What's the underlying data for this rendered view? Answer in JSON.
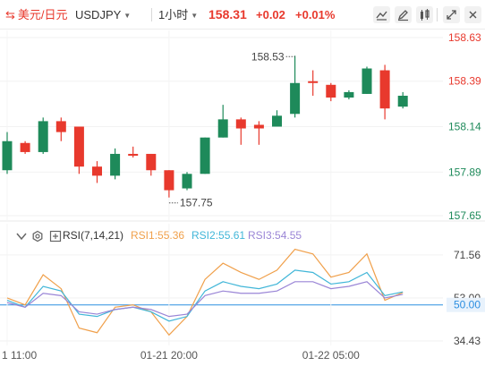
{
  "header": {
    "symbol": "美元/日元",
    "pair": "USDJPY",
    "interval": "1小时",
    "price": "158.31",
    "change": "+0.02",
    "change_pct": "+0.01%",
    "icons": [
      "compare-icon",
      "edit-icon",
      "settings-icon",
      "fullscreen-icon"
    ]
  },
  "chart_data": [
    {
      "type": "candlestick",
      "title": "",
      "price_ticks": [
        "158.63",
        "158.39",
        "158.14",
        "157.89",
        "157.65"
      ],
      "time_ticks": [
        "1 11:00",
        "01-21 20:00",
        "01-22 05:00"
      ],
      "high_label": "158.53",
      "low_label": "157.75",
      "colors": {
        "up": "#1e8a5a",
        "down": "#e8392d"
      },
      "candles": [
        {
          "o": 157.9,
          "c": 158.06,
          "h": 158.11,
          "l": 157.88
        },
        {
          "o": 158.05,
          "c": 158.0,
          "h": 158.06,
          "l": 157.99
        },
        {
          "o": 158.0,
          "c": 158.17,
          "h": 158.19,
          "l": 157.99
        },
        {
          "o": 158.17,
          "c": 158.11,
          "h": 158.19,
          "l": 158.06
        },
        {
          "o": 158.14,
          "c": 157.92,
          "h": 158.14,
          "l": 157.88
        },
        {
          "o": 157.92,
          "c": 157.87,
          "h": 157.95,
          "l": 157.83
        },
        {
          "o": 157.87,
          "c": 157.99,
          "h": 158.02,
          "l": 157.85
        },
        {
          "o": 157.99,
          "c": 157.98,
          "h": 158.03,
          "l": 157.97
        },
        {
          "o": 157.99,
          "c": 157.9,
          "h": 157.99,
          "l": 157.87
        },
        {
          "o": 157.9,
          "c": 157.79,
          "h": 157.9,
          "l": 157.75
        },
        {
          "o": 157.8,
          "c": 157.88,
          "h": 157.89,
          "l": 157.79
        },
        {
          "o": 157.88,
          "c": 158.08,
          "h": 158.08,
          "l": 157.88
        },
        {
          "o": 158.08,
          "c": 158.18,
          "h": 158.26,
          "l": 158.08
        },
        {
          "o": 158.18,
          "c": 158.13,
          "h": 158.19,
          "l": 158.04
        },
        {
          "o": 158.15,
          "c": 158.13,
          "h": 158.17,
          "l": 158.04
        },
        {
          "o": 158.14,
          "c": 158.2,
          "h": 158.23,
          "l": 158.14
        },
        {
          "o": 158.21,
          "c": 158.38,
          "h": 158.53,
          "l": 158.19
        },
        {
          "o": 158.39,
          "c": 158.38,
          "h": 158.45,
          "l": 158.31
        },
        {
          "o": 158.37,
          "c": 158.3,
          "h": 158.38,
          "l": 158.28
        },
        {
          "o": 158.3,
          "c": 158.33,
          "h": 158.34,
          "l": 158.29
        },
        {
          "o": 158.32,
          "c": 158.46,
          "h": 158.47,
          "l": 158.32
        },
        {
          "o": 158.45,
          "c": 158.24,
          "h": 158.48,
          "l": 158.18
        },
        {
          "o": 158.25,
          "c": 158.31,
          "h": 158.33,
          "l": 158.24
        }
      ]
    },
    {
      "type": "line",
      "title": "RSI(7,14,21)",
      "y_ticks": [
        "71.56",
        "53.00",
        "50.00",
        "34.43"
      ],
      "series": [
        {
          "name": "RSI1",
          "latest": "55.36",
          "color": "#f0a04b",
          "values": [
            53,
            50,
            63,
            57,
            40,
            38,
            49,
            50,
            47,
            37,
            45,
            61,
            68,
            64,
            61,
            65,
            74,
            72,
            62,
            64,
            72,
            52,
            55.36
          ]
        },
        {
          "name": "RSI2",
          "latest": "55.61",
          "color": "#41b6d8",
          "values": [
            52,
            49,
            58,
            56,
            46,
            45,
            48,
            49,
            47,
            43,
            45,
            56,
            60,
            58,
            57,
            59,
            65,
            64,
            59,
            60,
            64,
            54,
            55.61
          ]
        },
        {
          "name": "RSI3",
          "latest": "54.55",
          "color": "#9a85d6",
          "values": [
            51,
            49,
            55,
            54,
            47,
            46,
            48,
            49,
            48,
            45,
            46,
            54,
            56,
            55,
            55,
            56,
            60,
            60,
            57,
            58,
            60,
            53,
            54.55
          ]
        }
      ]
    }
  ]
}
